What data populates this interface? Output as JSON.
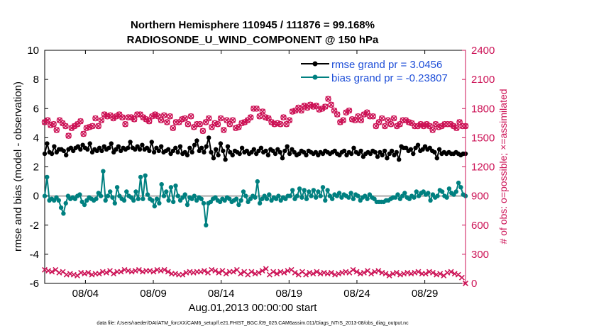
{
  "chart_data": {
    "type": "line",
    "title_line1": "Northern Hemisphere 110945 / 111876 = 99.168%",
    "title_line2": "RADIOSONDE_U_WIND_COMPONENT @ 150 hPa",
    "xlabel": "Aug.01,2013 00:00:00 start",
    "ylabel_left": "rmse and bias (model - observation)",
    "ylabel_right": "# of obs: o=possible; ×=assimilated",
    "x_tick_labels": [
      "08/04",
      "08/09",
      "08/14",
      "08/19",
      "08/24",
      "08/29"
    ],
    "x_tick_positions_days": [
      4,
      9,
      14,
      19,
      24,
      29
    ],
    "xlim_days": [
      1,
      32
    ],
    "ylim_left": [
      -6,
      10
    ],
    "y_ticks_left": [
      "-6",
      "-4",
      "-2",
      "0",
      "2",
      "4",
      "6",
      "8",
      "10"
    ],
    "ylim_right": [
      0,
      2400
    ],
    "y_ticks_right": [
      "0",
      "300",
      "600",
      "900",
      "1200",
      "1500",
      "1800",
      "2100",
      "2400"
    ],
    "legend": {
      "position": "top-right",
      "rmse_label": "rmse grand pr = 3.0456",
      "bias_label": "bias grand pr = -0.23807"
    },
    "colors": {
      "rmse": "#000000",
      "bias": "#008080",
      "obs": "#cc1155",
      "zero_line": "#aaaaaa",
      "legend_text": "#1f4fd8"
    },
    "series": [
      {
        "name": "rmse",
        "axis": "left",
        "values": [
          2.9,
          3.6,
          3.0,
          2.9,
          3.4,
          3.0,
          3.2,
          3.2,
          3.1,
          2.8,
          3.2,
          3.3,
          3.1,
          3.3,
          3.4,
          3.2,
          3.5,
          3.3,
          3.2,
          3.6,
          3.0,
          3.2,
          3.1,
          3.3,
          3.1,
          3.4,
          3.2,
          3.3,
          3.6,
          3.0,
          3.2,
          3.4,
          3.1,
          3.3,
          3.2,
          3.3,
          3.7,
          3.3,
          3.2,
          3.4,
          3.2,
          3.5,
          3.2,
          3.3,
          3.1,
          3.7,
          3.0,
          3.3,
          3.1,
          3.4,
          3.0,
          3.1,
          3.2,
          2.9,
          3.1,
          3.3,
          3.0,
          3.4,
          2.9,
          3.0,
          2.8,
          3.3,
          3.0,
          3.5,
          3.8,
          3.1,
          3.3,
          3.0,
          3.4,
          4.0,
          3.0,
          2.6,
          3.2,
          2.8,
          3.6,
          3.1,
          2.5,
          3.4,
          3.0,
          2.8,
          3.1,
          3.0,
          2.9,
          3.3,
          3.0,
          3.1,
          2.9,
          3.0,
          3.2,
          2.9,
          3.1,
          3.3,
          3.0,
          3.1,
          2.8,
          3.2,
          3.1,
          2.9,
          3.2,
          3.0,
          2.6,
          3.1,
          3.4,
          2.9,
          3.2,
          3.0,
          2.8,
          2.9,
          3.1,
          3.0,
          2.8,
          3.1,
          3.0,
          2.9,
          3.0,
          2.8,
          3.0,
          2.9,
          3.1,
          3.0,
          2.9,
          3.0,
          3.1,
          2.9,
          2.8,
          3.0,
          3.1,
          2.8,
          3.0,
          2.9,
          3.3,
          3.0,
          2.9,
          3.1,
          2.7,
          2.9,
          3.0,
          2.9,
          3.1,
          3.0,
          2.7,
          3.0,
          2.8,
          3.1,
          2.6,
          2.9,
          3.1,
          2.8,
          3.0,
          2.5,
          3.4,
          3.3,
          3.3,
          3.1,
          3.2,
          2.9,
          3.3,
          3.5,
          3.1,
          3.2,
          3.4,
          3.2,
          3.3,
          3.1,
          3.0,
          2.6,
          3.2,
          2.9,
          3.0,
          2.9,
          3.0,
          2.9,
          2.9,
          3.0,
          2.9,
          2.8,
          2.9,
          2.9
        ]
      },
      {
        "name": "bias",
        "axis": "left",
        "values": [
          0.0,
          1.3,
          -0.3,
          -0.2,
          -0.3,
          -0.1,
          -0.3,
          -0.8,
          -1.2,
          -0.5,
          0.0,
          -0.2,
          -0.1,
          -0.2,
          0.0,
          0.1,
          -0.4,
          -0.6,
          -0.3,
          -0.1,
          -0.2,
          -0.3,
          -0.2,
          0.2,
          0.0,
          1.7,
          -0.3,
          0.0,
          0.3,
          -0.1,
          -0.5,
          0.6,
          0.0,
          -0.2,
          -0.3,
          0.3,
          0.0,
          -0.1,
          -0.3,
          0.3,
          -0.2,
          1.3,
          -0.2,
          1.4,
          0.1,
          -0.2,
          -0.3,
          -0.7,
          -0.2,
          -0.5,
          0.8,
          0.0,
          0.3,
          -0.3,
          0.6,
          -0.4,
          0.7,
          0.0,
          -0.3,
          -0.1,
          0.1,
          -0.6,
          -0.1,
          -0.2,
          0.0,
          -0.3,
          -0.1,
          -0.2,
          -0.5,
          -2.0,
          -0.5,
          -0.4,
          -0.2,
          -0.1,
          -0.3,
          -0.4,
          -0.2,
          -0.3,
          -0.1,
          -0.2,
          -0.4,
          -0.3,
          -0.2,
          -0.6,
          -0.3,
          0.3,
          0.0,
          -0.4,
          -0.2,
          0.0,
          -0.1,
          1.0,
          -0.5,
          -0.2,
          0.0,
          -0.2,
          0.1,
          -0.3,
          -0.1,
          -0.2,
          0.0,
          -0.3,
          -0.1,
          -0.2,
          0.0,
          0.0,
          0.4,
          -0.2,
          0.0,
          0.5,
          -0.1,
          0.4,
          -0.2,
          0.3,
          0.0,
          0.4,
          -0.1,
          0.3,
          0.0,
          0.6,
          -0.3,
          0.4,
          0.0,
          -0.2,
          0.1,
          0.0,
          0.2,
          -0.1,
          0.1,
          0.0,
          -0.1,
          0.2,
          -0.2,
          0.1,
          0.0,
          -0.3,
          -0.1,
          0.0,
          -0.2,
          0.1,
          -0.1,
          -0.2,
          -0.4,
          -0.4,
          -0.4,
          -0.4,
          -0.3,
          -0.3,
          -0.2,
          -0.1,
          -0.1,
          0.1,
          -0.2,
          0.0,
          0.2,
          -0.1,
          -0.2,
          0.0,
          -0.1,
          0.3,
          0.0,
          0.2,
          0.3,
          0.1,
          0.2,
          -0.3,
          0.1,
          -0.1,
          0.0,
          0.4,
          0.3,
          0.0,
          -0.1,
          0.5,
          0.2,
          0.1,
          0.3,
          0.9,
          0.6,
          0.1,
          0.0
        ]
      },
      {
        "name": "obs possible",
        "axis": "right",
        "values": [
          1660,
          1680,
          1630,
          1640,
          1580,
          1680,
          1650,
          1620,
          1520,
          1600,
          1620,
          1640,
          1670,
          1540,
          1600,
          1610,
          1620,
          1700,
          1620,
          1680,
          1740,
          1720,
          1730,
          1700,
          1720,
          1740,
          1710,
          1640,
          1710,
          1710,
          1690,
          1740,
          1740,
          1710,
          1690,
          1670,
          1720,
          1740,
          1720,
          1680,
          1730,
          1660,
          1720,
          1600,
          1660,
          1660,
          1690,
          1700,
          1640,
          1720,
          1610,
          1640,
          1640,
          1570,
          1660,
          1700,
          1610,
          1650,
          1640,
          1700,
          1580,
          1680,
          1640,
          1680,
          1600,
          1610,
          1650,
          1660,
          1680,
          1710,
          1800,
          1800,
          1720,
          1770,
          1710,
          1700,
          1660,
          1640,
          1650,
          1640,
          1710,
          1640,
          1680,
          1770,
          1780,
          1810,
          1780,
          1830,
          1810,
          1840,
          1820,
          1830,
          1790,
          1800,
          1820,
          1900,
          1840,
          1780,
          1740,
          1660,
          1680,
          1760,
          1780,
          1690,
          1680,
          1720,
          1680,
          1740,
          1760,
          1720,
          1720,
          1620,
          1660,
          1700,
          1620,
          1680,
          1640,
          1700,
          1620,
          1640,
          1680,
          1680,
          1660,
          1650,
          1620,
          1620,
          1640,
          1620,
          1640,
          1620,
          1580,
          1640,
          1610,
          1620,
          1640,
          1640,
          1640,
          1620,
          1600,
          1660,
          1620,
          1620
        ]
      },
      {
        "name": "obs assimilated",
        "axis": "right",
        "values": [
          140,
          130,
          120,
          140,
          110,
          120,
          90,
          100,
          90,
          80,
          110,
          100,
          110,
          90,
          100,
          100,
          120,
          110,
          130,
          100,
          120,
          120,
          140,
          130,
          120,
          130,
          140,
          120,
          130,
          130,
          120,
          140,
          130,
          140,
          120,
          100,
          100,
          90,
          90,
          110,
          120,
          110,
          120,
          120,
          130,
          110,
          140,
          130,
          110,
          130,
          100,
          120,
          120,
          140,
          100,
          120,
          90,
          120,
          100,
          110,
          130,
          150,
          90,
          120,
          100,
          120,
          110,
          130,
          140,
          110,
          90,
          120,
          90,
          110,
          100,
          120,
          100,
          110,
          100,
          110,
          90,
          100,
          110,
          120,
          110,
          140,
          120,
          100,
          110,
          130,
          100,
          120,
          130,
          110,
          100,
          80,
          100,
          110,
          90,
          100,
          110,
          100,
          110,
          120,
          100,
          100,
          120,
          110,
          90,
          100,
          80,
          110,
          120,
          100,
          90,
          60,
          0
        ]
      }
    ]
  },
  "footer": {
    "data_file": "data file: /Users/raeder/DAI/ATM_forcXX/CAM6_setup/f.e21.FHIST_BGC.f09_025.CAM6assim.011/Diags_NTrS_2013-08/obs_diag_output.nc"
  }
}
